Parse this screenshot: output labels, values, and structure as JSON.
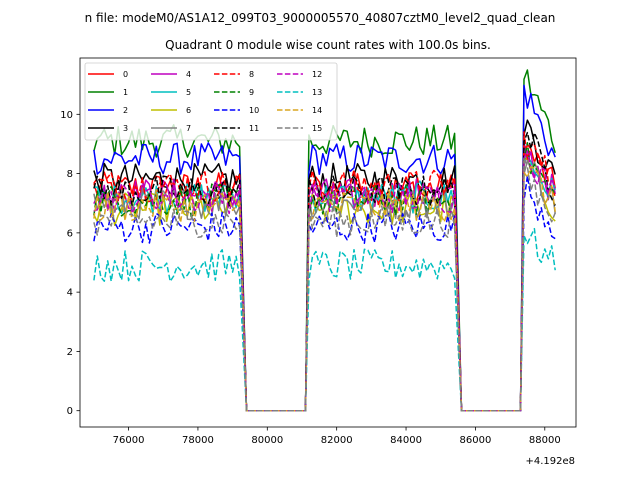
{
  "chart_data": {
    "type": "line",
    "suptitle": "n file: modeM0/AS1A12_099T03_9000005570_40807cztM0_level2_quad_clean",
    "title": "Quadrant 0 module wise count rates with 100.0s bins.",
    "xlabel": "",
    "ylabel": "",
    "x_offset_label": "+4.192e8",
    "xlim": [
      74600,
      88900
    ],
    "ylim": [
      -0.55,
      11.9
    ],
    "xticks": [
      76000,
      78000,
      80000,
      82000,
      84000,
      86000,
      88000
    ],
    "xtick_labels": [
      "76000",
      "78000",
      "80000",
      "82000",
      "84000",
      "86000",
      "88000"
    ],
    "yticks": [
      0,
      2,
      4,
      6,
      8,
      10
    ],
    "ytick_labels": [
      "0",
      "2",
      "4",
      "6",
      "8",
      "10"
    ],
    "legend_location": "upper-left",
    "segments": [
      {
        "x_start": 75000,
        "x_end": 79200,
        "drop_to": 79400
      },
      {
        "rise_from": 81100,
        "x_start": 81200,
        "x_end": 85400,
        "drop_to": 85600
      },
      {
        "rise_from": 87300,
        "x_start": 87400,
        "x_end": 88300
      }
    ],
    "series": [
      {
        "name": "0",
        "color": "#ff0000",
        "dash": "solid",
        "level": 7.5,
        "peak": 9.0
      },
      {
        "name": "1",
        "color": "#008000",
        "dash": "solid",
        "level": 9.1,
        "peak": 11.4
      },
      {
        "name": "2",
        "color": "#0000ff",
        "dash": "solid",
        "level": 8.5,
        "peak": 10.9
      },
      {
        "name": "3",
        "color": "#000000",
        "dash": "solid",
        "level": 7.8,
        "peak": 9.8
      },
      {
        "name": "4",
        "color": "#bf00bf",
        "dash": "solid",
        "level": 7.3,
        "peak": 8.8
      },
      {
        "name": "5",
        "color": "#00bfbf",
        "dash": "solid",
        "level": 7.2,
        "peak": 8.6
      },
      {
        "name": "6",
        "color": "#bfbf00",
        "dash": "solid",
        "level": 6.8,
        "peak": 8.4
      },
      {
        "name": "7",
        "color": "#808080",
        "dash": "solid",
        "level": 7.0,
        "peak": 8.5
      },
      {
        "name": "8",
        "color": "#ff0000",
        "dash": "dashed",
        "level": 7.6,
        "peak": 9.2
      },
      {
        "name": "9",
        "color": "#008000",
        "dash": "dashed",
        "level": 7.1,
        "peak": 8.7
      },
      {
        "name": "10",
        "color": "#0000ff",
        "dash": "dashed",
        "level": 6.2,
        "peak": 7.6
      },
      {
        "name": "11",
        "color": "#000000",
        "dash": "dashed",
        "level": 7.4,
        "peak": 9.6
      },
      {
        "name": "12",
        "color": "#bf00bf",
        "dash": "dashed",
        "level": 7.2,
        "peak": 8.9
      },
      {
        "name": "13",
        "color": "#00bfbf",
        "dash": "dashed",
        "level": 4.9,
        "peak": 6.0
      },
      {
        "name": "14",
        "color": "#daa520",
        "dash": "dashed",
        "level": 6.9,
        "peak": 8.3
      },
      {
        "name": "15",
        "color": "#808080",
        "dash": "dashed",
        "level": 6.4,
        "peak": 8.0
      }
    ]
  }
}
